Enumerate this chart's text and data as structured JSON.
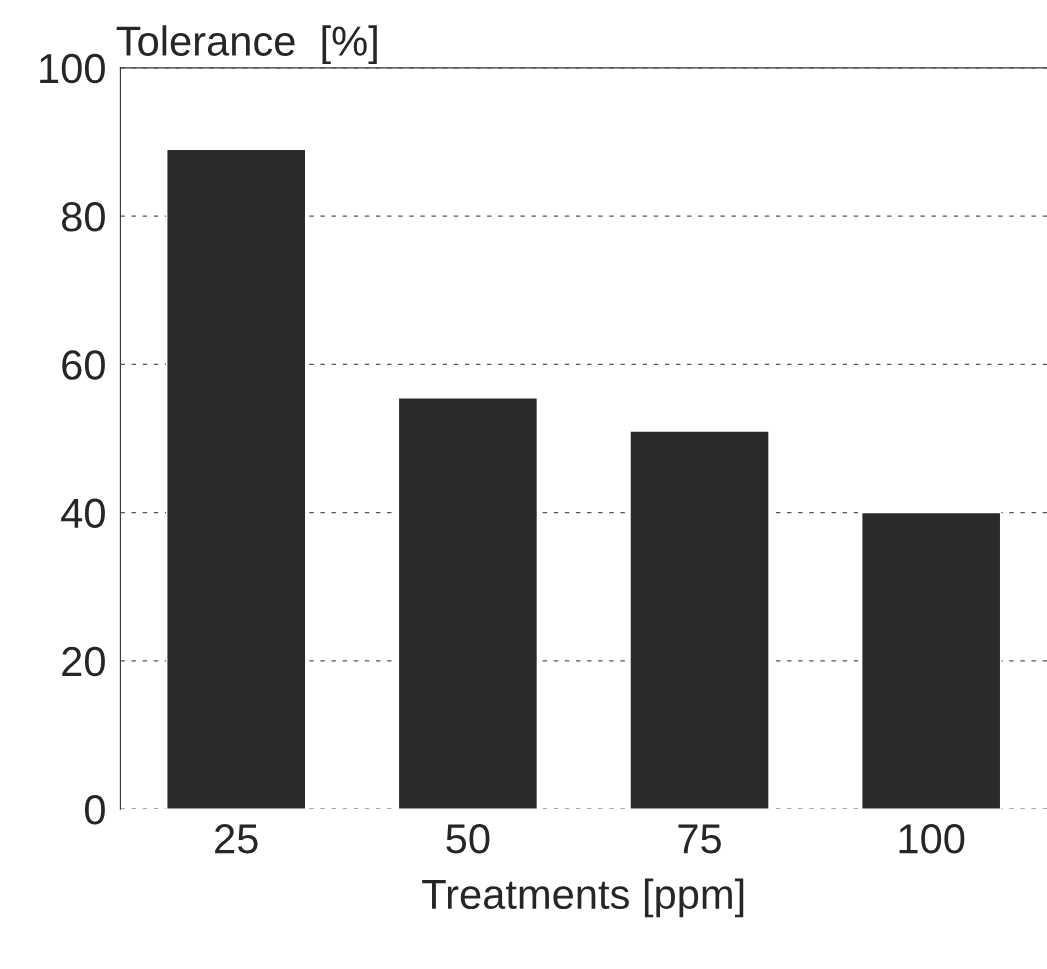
{
  "chart_data": {
    "type": "bar",
    "ylabel": "Tolerance  [%]",
    "xlabel": "Treatments [ppm]",
    "categories": [
      "25",
      "50",
      "75",
      "100"
    ],
    "values": [
      89,
      55.5,
      51,
      40
    ],
    "color": "#2b2b2b",
    "ylim": [
      0,
      100
    ],
    "yticks": [
      0,
      20,
      40,
      60,
      80,
      100
    ],
    "grid": "y",
    "line_style": "dashed"
  }
}
